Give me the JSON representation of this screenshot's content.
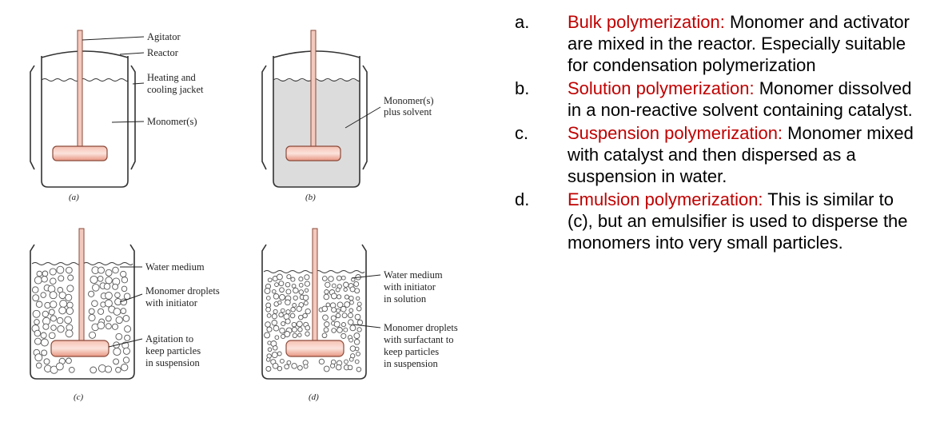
{
  "diagram": {
    "panels": [
      {
        "id": "a",
        "caption": "(a)",
        "labels": [
          "Agitator",
          "Reactor",
          "Heating and",
          "cooling jacket",
          "Monomer(s)"
        ]
      },
      {
        "id": "b",
        "caption": "(b)",
        "labels": [
          "Monomer(s)",
          "plus solvent"
        ]
      },
      {
        "id": "c",
        "caption": "(c)",
        "labels": [
          "Water medium",
          "Monomer droplets",
          "with initiator",
          "Agitation to",
          "keep particles",
          "in suspension"
        ]
      },
      {
        "id": "d",
        "caption": "(d)",
        "labels": [
          "Water medium",
          "with initiator",
          "in solution",
          "Monomer droplets",
          "with surfactant to",
          "keep particles",
          "in suspension"
        ]
      }
    ],
    "colors": {
      "shaft": "#f4c9bd",
      "paddle": "#f0a898",
      "solution": "#dcdcdc"
    }
  },
  "descriptions": [
    {
      "letter": "a.",
      "term": "Bulk polymerization:",
      "text": " Monomer and activator are mixed in the reactor. Especially suitable for condensation polymerization"
    },
    {
      "letter": "b.",
      "term": "Solution polymerization:",
      "text": " Monomer dissolved in a non-reactive solvent containing catalyst."
    },
    {
      "letter": "c.",
      "term": "Suspension polymerization:",
      "text": " Monomer mixed with catalyst and then dispersed as a suspension in water."
    },
    {
      "letter": "d.",
      "term": "Emulsion polymerization:",
      "text": " This is similar to (c), but an emulsifier is used to disperse the monomers into very small particles."
    }
  ],
  "term_color": "#c00000"
}
